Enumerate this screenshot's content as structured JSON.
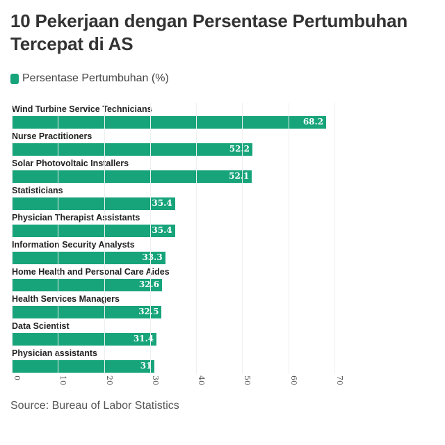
{
  "title": "10 Pekerjaan dengan Persentase Pertumbuhan Tercepat di AS",
  "legend": {
    "label": "Persentase Pertumbuhan (%)",
    "color": "#17a47a"
  },
  "source": "Source: Bureau of Labor Statistics",
  "chart_data": {
    "type": "bar",
    "orientation": "horizontal",
    "title": "10 Pekerjaan dengan Persentase Pertumbuhan Tercepat di AS",
    "categories": [
      "Wind Turbine Service Technicians",
      "Nurse Practitioners",
      "Solar Photovoltaic Installers",
      "Statisticians",
      "Physician Therapist Assistants",
      "Information Security Analysts",
      "Home Health and Personal Care Aides",
      "Health Services Managers",
      "Data Scientist",
      "Physician assistants"
    ],
    "series": [
      {
        "name": "Persentase Pertumbuhan (%)",
        "color": "#17a47a",
        "values": [
          68.2,
          52.2,
          52.1,
          35.4,
          35.4,
          33.3,
          32.6,
          32.5,
          31.4,
          31
        ]
      }
    ],
    "value_labels": [
      "68.2",
      "52.2",
      "52.1",
      "35.4",
      "35.4",
      "33.3",
      "32.6",
      "32.5",
      "31.4",
      "31"
    ],
    "xlabel": "",
    "ylabel": "",
    "xlim": [
      0,
      70
    ],
    "xticks": [
      0,
      10,
      20,
      30,
      40,
      50,
      60,
      70
    ],
    "grid": true,
    "legend_position": "top-left",
    "source": "Source: Bureau of Labor Statistics"
  }
}
